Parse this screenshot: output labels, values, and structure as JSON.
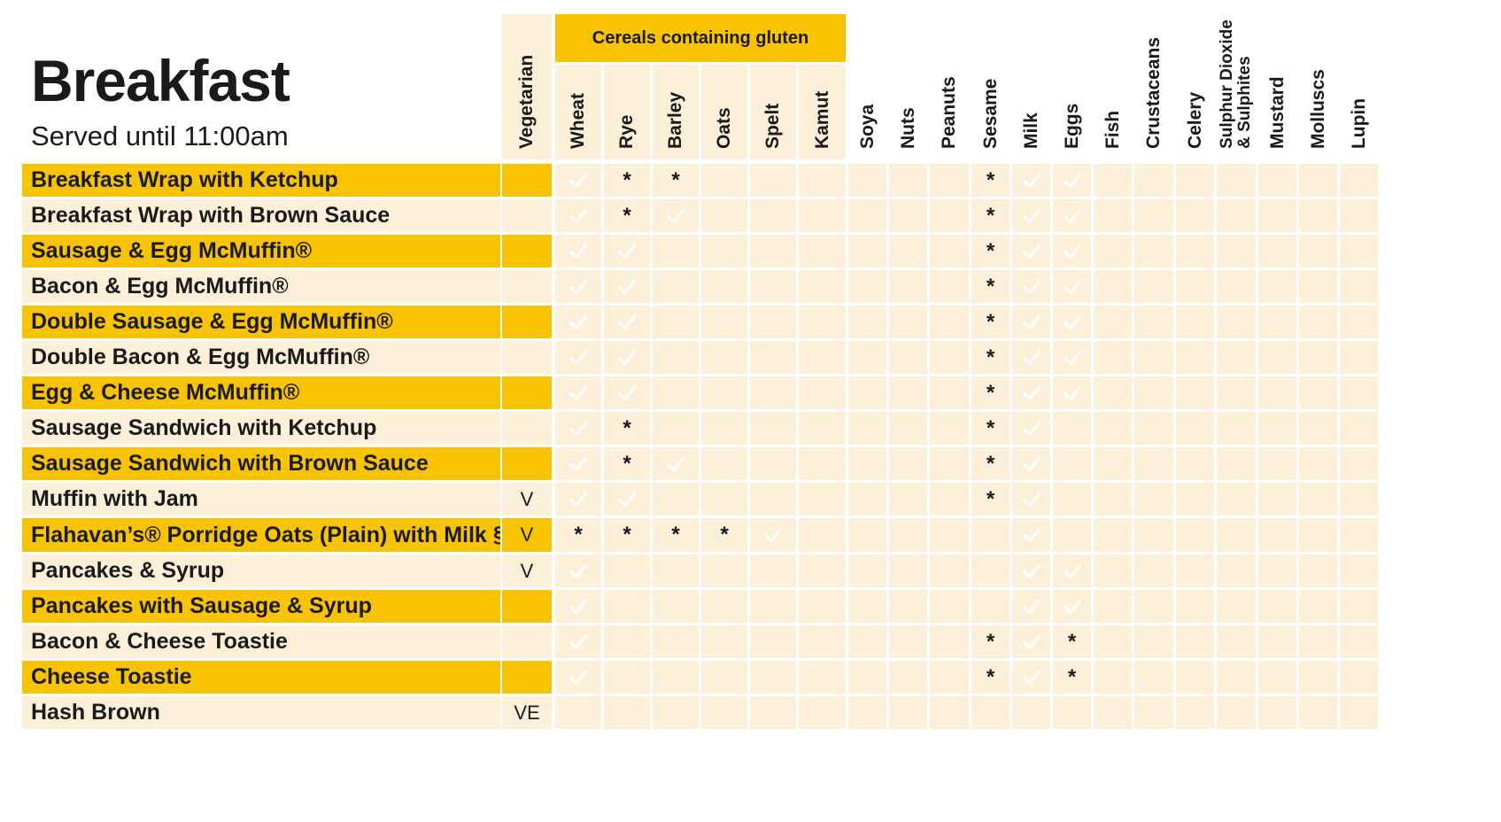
{
  "title": "Breakfast",
  "subtitle": "Served until 11:00am",
  "group_label": "Cereals containing gluten",
  "columns": [
    {
      "key": "vegetarian",
      "label": "Vegetarian"
    },
    {
      "key": "wheat",
      "label": "Wheat"
    },
    {
      "key": "rye",
      "label": "Rye"
    },
    {
      "key": "barley",
      "label": "Barley"
    },
    {
      "key": "oats",
      "label": "Oats"
    },
    {
      "key": "spelt",
      "label": "Spelt"
    },
    {
      "key": "kamut",
      "label": "Kamut"
    },
    {
      "key": "soya",
      "label": "Soya"
    },
    {
      "key": "nuts",
      "label": "Nuts"
    },
    {
      "key": "peanuts",
      "label": "Peanuts"
    },
    {
      "key": "sesame",
      "label": "Sesame"
    },
    {
      "key": "milk",
      "label": "Milk"
    },
    {
      "key": "eggs",
      "label": "Eggs"
    },
    {
      "key": "fish",
      "label": "Fish"
    },
    {
      "key": "crustaceans",
      "label": "Crustaceans"
    },
    {
      "key": "celery",
      "label": "Celery"
    },
    {
      "key": "sulphur",
      "label": "Sulphur Dioxide\n& Sulphites"
    },
    {
      "key": "mustard",
      "label": "Mustard"
    },
    {
      "key": "molluscs",
      "label": "Molluscs"
    },
    {
      "key": "lupin",
      "label": "Lupin"
    }
  ],
  "legend_values": {
    "check": "✓",
    "star": "*"
  },
  "colors": {
    "yellow": "#f8c300",
    "orange": "#f26b1d",
    "cream": "#fdf0d9"
  },
  "rows": [
    {
      "name": "Breakfast Wrap with Ketchup",
      "vegetarian": "",
      "cells": {
        "wheat": "check",
        "rye": "star",
        "barley": "star",
        "sesame": "star",
        "milk": "check",
        "eggs": "check"
      }
    },
    {
      "name": "Breakfast Wrap with Brown Sauce",
      "vegetarian": "",
      "cells": {
        "wheat": "check",
        "rye": "star",
        "barley": "check",
        "sesame": "star",
        "milk": "check",
        "eggs": "check"
      }
    },
    {
      "name": "Sausage & Egg McMuffin®",
      "vegetarian": "",
      "cells": {
        "wheat": "check",
        "rye": "check",
        "sesame": "star",
        "milk": "check",
        "eggs": "check"
      }
    },
    {
      "name": "Bacon & Egg McMuffin®",
      "vegetarian": "",
      "cells": {
        "wheat": "check",
        "rye": "check",
        "sesame": "star",
        "milk": "check",
        "eggs": "check"
      }
    },
    {
      "name": "Double Sausage & Egg McMuffin®",
      "vegetarian": "",
      "cells": {
        "wheat": "check",
        "rye": "check",
        "sesame": "star",
        "milk": "check",
        "eggs": "check"
      }
    },
    {
      "name": "Double Bacon & Egg McMuffin®",
      "vegetarian": "",
      "cells": {
        "wheat": "check",
        "rye": "check",
        "sesame": "star",
        "milk": "check",
        "eggs": "check"
      }
    },
    {
      "name": "Egg & Cheese McMuffin®",
      "vegetarian": "",
      "cells": {
        "wheat": "check",
        "rye": "check",
        "sesame": "star",
        "milk": "check",
        "eggs": "check"
      }
    },
    {
      "name": "Sausage Sandwich with Ketchup",
      "vegetarian": "",
      "cells": {
        "wheat": "check",
        "rye": "star",
        "sesame": "star",
        "milk": "check"
      }
    },
    {
      "name": "Sausage Sandwich with Brown Sauce",
      "vegetarian": "",
      "cells": {
        "wheat": "check",
        "rye": "star",
        "barley": "check",
        "sesame": "star",
        "milk": "check"
      }
    },
    {
      "name": "Muffin with Jam",
      "vegetarian": "V",
      "cells": {
        "wheat": "check",
        "rye": "check",
        "sesame": "star",
        "milk": "check"
      }
    },
    {
      "name": "Flahavan’s® Porridge Oats (Plain) with Milk §",
      "vegetarian": "V",
      "cells": {
        "wheat": "star",
        "rye": "star",
        "barley": "star",
        "oats": "star",
        "spelt": "check",
        "milk": "check"
      }
    },
    {
      "name": "Pancakes & Syrup",
      "vegetarian": "V",
      "cells": {
        "wheat": "check",
        "milk": "check",
        "eggs": "check"
      }
    },
    {
      "name": "Pancakes with Sausage & Syrup",
      "vegetarian": "",
      "cells": {
        "wheat": "check",
        "milk": "check",
        "eggs": "check"
      }
    },
    {
      "name": "Bacon & Cheese Toastie",
      "vegetarian": "",
      "cells": {
        "wheat": "check",
        "sesame": "star",
        "milk": "check",
        "eggs": "star"
      }
    },
    {
      "name": "Cheese Toastie",
      "vegetarian": "",
      "cells": {
        "wheat": "check",
        "sesame": "star",
        "milk": "check",
        "eggs": "star"
      }
    },
    {
      "name": "Hash Brown",
      "vegetarian": "VE",
      "cells": {}
    }
  ]
}
